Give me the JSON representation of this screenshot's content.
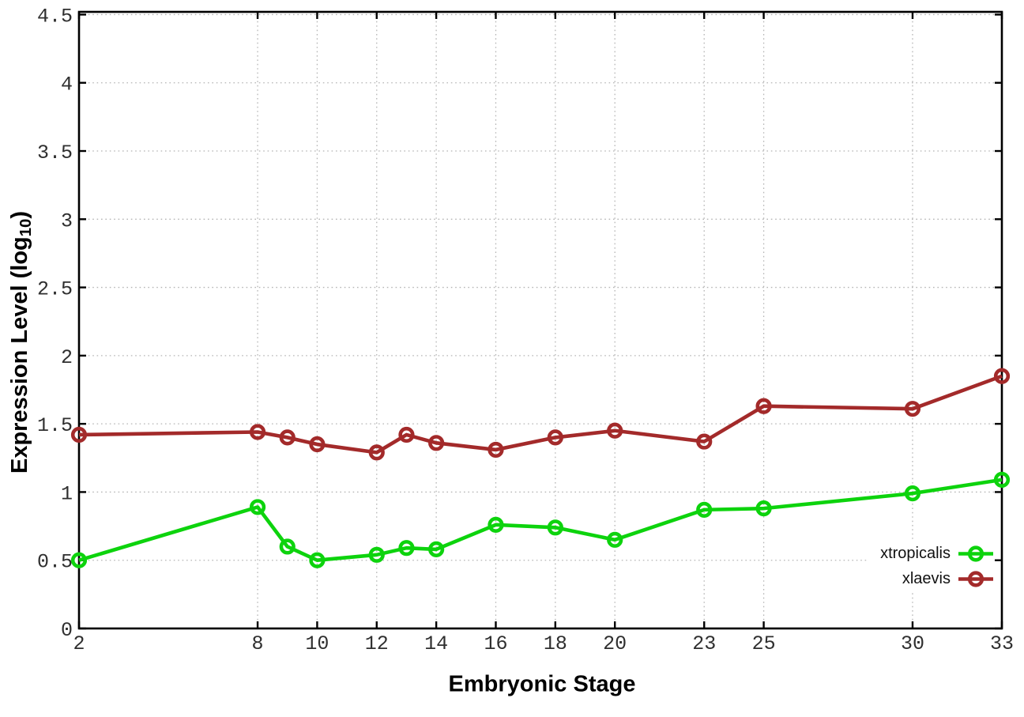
{
  "figure": {
    "background": "#ffffff",
    "xlabel": "Embryonic Stage",
    "ylabel_prefix": "Expression Level (log",
    "ylabel_sub": "10",
    "ylabel_suffix": ")"
  },
  "chart_data": {
    "type": "line",
    "title": "",
    "xlabel": "Embryonic Stage",
    "ylabel": "Expression Level (log10)",
    "x": [
      2,
      8,
      9,
      10,
      12,
      13,
      14,
      16,
      18,
      20,
      23,
      25,
      30,
      33
    ],
    "series": [
      {
        "name": "xtropicalis",
        "color": "#0dd30d",
        "marker": "open-circle",
        "values": [
          0.5,
          0.89,
          0.6,
          0.5,
          0.54,
          0.59,
          0.58,
          0.76,
          0.74,
          0.65,
          0.87,
          0.88,
          0.99,
          1.09
        ]
      },
      {
        "name": "xlaevis",
        "color": "#a32a2a",
        "marker": "open-circle",
        "values": [
          1.42,
          1.44,
          1.4,
          1.35,
          1.29,
          1.42,
          1.36,
          1.31,
          1.4,
          1.45,
          1.37,
          1.63,
          1.61,
          1.85
        ]
      }
    ],
    "xlim": [
      2,
      33
    ],
    "ylim": [
      0,
      4.52
    ],
    "xtick_values": [
      2,
      8,
      10,
      12,
      14,
      16,
      18,
      20,
      23,
      25,
      30,
      33
    ],
    "xtick_labels": [
      "2",
      "8",
      "10",
      "12",
      "14",
      "16",
      "18",
      "20",
      "23",
      "25",
      "30",
      "33"
    ],
    "ytick_values": [
      0,
      0.5,
      1,
      1.5,
      2,
      2.5,
      3,
      3.5,
      4,
      4.5
    ],
    "ytick_labels": [
      "0",
      "0.5",
      "1",
      "1.5",
      "2",
      "2.5",
      "3",
      "3.5",
      "4",
      "4.5"
    ],
    "grid": "dotted",
    "grid_color": "#b5b5b5",
    "axis_color": "#000000",
    "tick_label_color": "#2f2f2f",
    "legend_position": "inside-bottom-right"
  }
}
